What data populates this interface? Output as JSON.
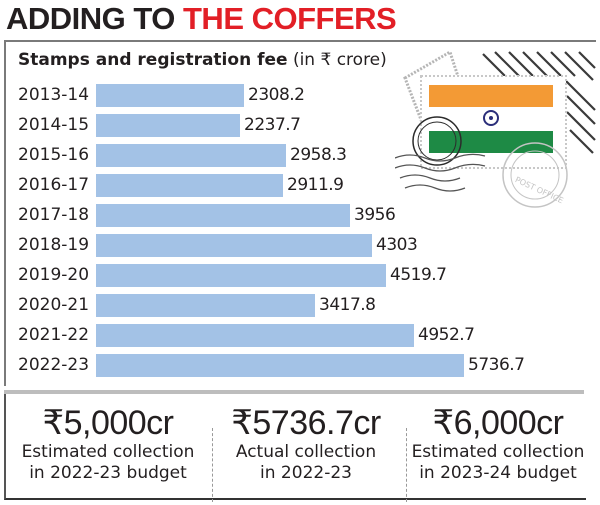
{
  "headline": {
    "part1": "ADDING TO ",
    "part2": "THE COFFERS"
  },
  "subtitle": {
    "bold": "Stamps and registration fee",
    "unit": " (in ₹ crore)"
  },
  "chart_data": {
    "type": "bar",
    "orientation": "horizontal",
    "title": "Stamps and registration fee (in ₹ crore)",
    "xlabel": "",
    "ylabel": "",
    "categories": [
      "2013-14",
      "2014-15",
      "2015-16",
      "2016-17",
      "2017-18",
      "2018-19",
      "2019-20",
      "2020-21",
      "2021-22",
      "2022-23"
    ],
    "values": [
      2308.2,
      2237.7,
      2958.3,
      2911.9,
      3956,
      4303,
      4519.7,
      3417.8,
      4952.7,
      5736.7
    ],
    "value_labels": [
      "2308.2",
      "2237.7",
      "2958.3",
      "2911.9",
      "3956",
      "4303",
      "4519.7",
      "3417.8",
      "4952.7",
      "5736.7"
    ],
    "bar_color": "#a3c2e6",
    "grid": false,
    "legend": null
  },
  "stats": [
    {
      "value": "₹5,000cr",
      "line1": "Estimated collection",
      "line2": "in 2022-23 budget"
    },
    {
      "value": "₹5736.7cr",
      "line1": "Actual collection",
      "line2": "in 2022-23"
    },
    {
      "value": "₹6,000cr",
      "line1": "Estimated collection",
      "line2": "in 2023-24 budget"
    }
  ],
  "colors": {
    "headline_black": "#231f20",
    "headline_red": "#e21f26",
    "bar": "#a3c2e6",
    "flag_saffron": "#f39a35",
    "flag_green": "#1e8a45",
    "chakra": "#2b2e7a"
  },
  "illustration": {
    "icon": "india-flag-postage-stamp-icon",
    "postmark_text": "POST OFFICE"
  }
}
